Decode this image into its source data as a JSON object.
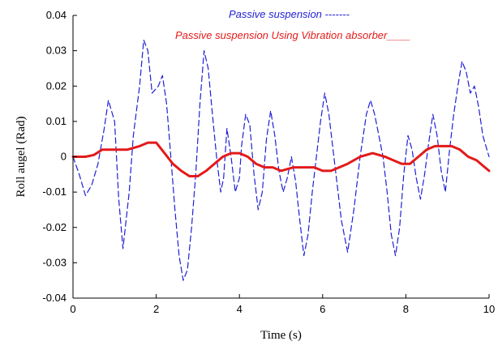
{
  "chart_data": {
    "type": "line",
    "title": "",
    "xlabel": "Time (s)",
    "ylabel": "Roll augel (Rad)",
    "xlim": [
      0,
      10
    ],
    "ylim": [
      -0.04,
      0.04
    ],
    "xticks": [
      "0",
      "2",
      "4",
      "6",
      "8",
      "10"
    ],
    "yticks": [
      "0.04",
      "0.03",
      "0.02",
      "0.01",
      "0",
      "-0.01",
      "-0.02",
      "-0.03",
      "-0.04"
    ],
    "grid": false,
    "legend": [
      {
        "text": "Passive suspension -------",
        "color": "#1f1fd6",
        "style": "dashed"
      },
      {
        "text": "Passive suspension Using Vibration absorber____",
        "color": "#e31a1a",
        "style": "solid"
      }
    ],
    "series": [
      {
        "name": "Passive suspension",
        "color": "#1f1fd6",
        "style": "dashed",
        "x": [
          0,
          0.15,
          0.3,
          0.45,
          0.6,
          0.75,
          0.85,
          1.0,
          1.1,
          1.2,
          1.35,
          1.45,
          1.6,
          1.7,
          1.8,
          1.9,
          2.05,
          2.15,
          2.25,
          2.35,
          2.45,
          2.55,
          2.65,
          2.75,
          2.85,
          2.95,
          3.05,
          3.15,
          3.25,
          3.35,
          3.45,
          3.55,
          3.62,
          3.7,
          3.8,
          3.9,
          4.0,
          4.05,
          4.15,
          4.25,
          4.35,
          4.45,
          4.55,
          4.65,
          4.75,
          4.85,
          4.95,
          5.05,
          5.15,
          5.25,
          5.35,
          5.45,
          5.55,
          5.65,
          5.75,
          5.85,
          5.95,
          6.05,
          6.15,
          6.3,
          6.45,
          6.6,
          6.75,
          6.9,
          7.05,
          7.15,
          7.25,
          7.35,
          7.45,
          7.55,
          7.65,
          7.75,
          7.85,
          7.95,
          8.05,
          8.15,
          8.25,
          8.35,
          8.45,
          8.55,
          8.65,
          8.75,
          8.85,
          8.95,
          9.05,
          9.15,
          9.25,
          9.35,
          9.45,
          9.55,
          9.65,
          9.75,
          9.85,
          9.95,
          10.0
        ],
        "y": [
          0.0,
          -0.005,
          -0.011,
          -0.008,
          -0.002,
          0.008,
          0.016,
          0.01,
          -0.012,
          -0.026,
          -0.01,
          0.006,
          0.02,
          0.033,
          0.03,
          0.018,
          0.02,
          0.023,
          0.015,
          0.0,
          -0.015,
          -0.028,
          -0.035,
          -0.032,
          -0.02,
          -0.005,
          0.015,
          0.03,
          0.025,
          0.012,
          0.0,
          -0.01,
          -0.006,
          0.008,
          0.0,
          -0.01,
          -0.006,
          0.003,
          0.012,
          0.009,
          -0.005,
          -0.015,
          -0.01,
          0.005,
          0.013,
          0.006,
          -0.004,
          -0.01,
          -0.006,
          0.0,
          -0.007,
          -0.018,
          -0.028,
          -0.022,
          -0.01,
          0.0,
          0.01,
          0.018,
          0.012,
          -0.003,
          -0.018,
          -0.027,
          -0.015,
          0.0,
          0.012,
          0.016,
          0.012,
          0.006,
          0.0,
          -0.01,
          -0.022,
          -0.028,
          -0.02,
          -0.005,
          0.006,
          0.002,
          -0.006,
          -0.012,
          -0.005,
          0.004,
          0.012,
          0.006,
          -0.004,
          -0.01,
          0.002,
          0.012,
          0.02,
          0.027,
          0.024,
          0.018,
          0.02,
          0.014,
          0.006,
          0.002,
          0.0
        ]
      },
      {
        "name": "Passive suspension Using Vibration absorber",
        "color": "#e31a1a",
        "style": "solid",
        "x": [
          0,
          0.3,
          0.5,
          0.7,
          1.0,
          1.3,
          1.6,
          1.8,
          2.0,
          2.2,
          2.4,
          2.6,
          2.8,
          3.0,
          3.2,
          3.4,
          3.6,
          3.8,
          4.0,
          4.2,
          4.4,
          4.6,
          4.8,
          5.0,
          5.3,
          5.6,
          5.8,
          6.0,
          6.2,
          6.4,
          6.6,
          6.9,
          7.2,
          7.5,
          7.7,
          7.9,
          8.1,
          8.3,
          8.5,
          8.7,
          8.9,
          9.1,
          9.3,
          9.5,
          9.7,
          9.9,
          10.0
        ],
        "y": [
          0.0,
          0.0,
          0.0005,
          0.002,
          0.002,
          0.002,
          0.003,
          0.004,
          0.004,
          0.001,
          -0.002,
          -0.004,
          -0.0055,
          -0.0055,
          -0.004,
          -0.002,
          0.0,
          0.001,
          0.001,
          0.0,
          -0.002,
          -0.003,
          -0.003,
          -0.004,
          -0.003,
          -0.003,
          -0.003,
          -0.004,
          -0.004,
          -0.003,
          -0.002,
          0.0,
          0.001,
          0.0,
          -0.001,
          -0.002,
          -0.002,
          0.0,
          0.002,
          0.003,
          0.003,
          0.003,
          0.002,
          0.0,
          -0.001,
          -0.003,
          -0.004
        ]
      }
    ]
  }
}
